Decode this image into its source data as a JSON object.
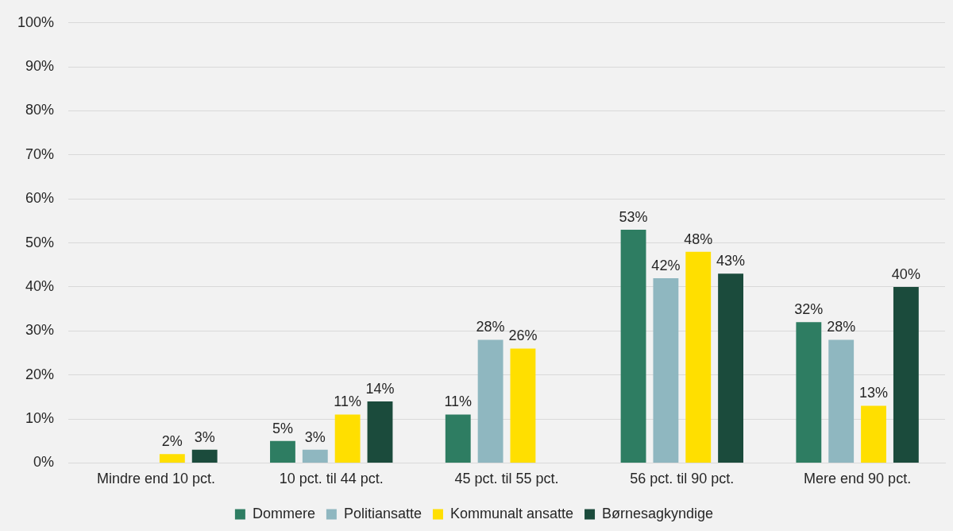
{
  "chart_data": {
    "type": "bar",
    "categories": [
      "Mindre end 10 pct.",
      "10 pct. til 44 pct.",
      "45 pct. til 55 pct.",
      "56 pct. til 90 pct.",
      "Mere end 90 pct."
    ],
    "series": [
      {
        "name": "Dommere",
        "color": "#2e7d62",
        "values": [
          null,
          5,
          11,
          53,
          32
        ],
        "value_labels": [
          null,
          "5%",
          "11%",
          "53%",
          "32%"
        ]
      },
      {
        "name": "Politiansatte",
        "color": "#8fb7c0",
        "values": [
          null,
          3,
          28,
          42,
          28
        ],
        "value_labels": [
          null,
          "3%",
          "28%",
          "42%",
          "28%"
        ]
      },
      {
        "name": "Kommunalt ansatte",
        "color": "#ffdf00",
        "values": [
          2,
          11,
          26,
          48,
          13
        ],
        "value_labels": [
          "2%",
          "11%",
          "26%",
          "48%",
          "13%"
        ]
      },
      {
        "name": "Børnesagkyndige",
        "color": "#1b4b3c",
        "values": [
          3,
          14,
          null,
          43,
          40
        ],
        "value_labels": [
          "3%",
          "14%",
          null,
          "43%",
          "40%"
        ]
      }
    ],
    "ylim": [
      0,
      100
    ],
    "yticks": [
      {
        "value": 0,
        "label": "0%"
      },
      {
        "value": 10,
        "label": "10%"
      },
      {
        "value": 20,
        "label": "20%"
      },
      {
        "value": 30,
        "label": "30%"
      },
      {
        "value": 40,
        "label": "40%"
      },
      {
        "value": 50,
        "label": "50%"
      },
      {
        "value": 60,
        "label": "60%"
      },
      {
        "value": 70,
        "label": "70%"
      },
      {
        "value": 80,
        "label": "80%"
      },
      {
        "value": 90,
        "label": "90%"
      },
      {
        "value": 100,
        "label": "100%"
      }
    ],
    "grid": "y",
    "legend": "bottom"
  }
}
